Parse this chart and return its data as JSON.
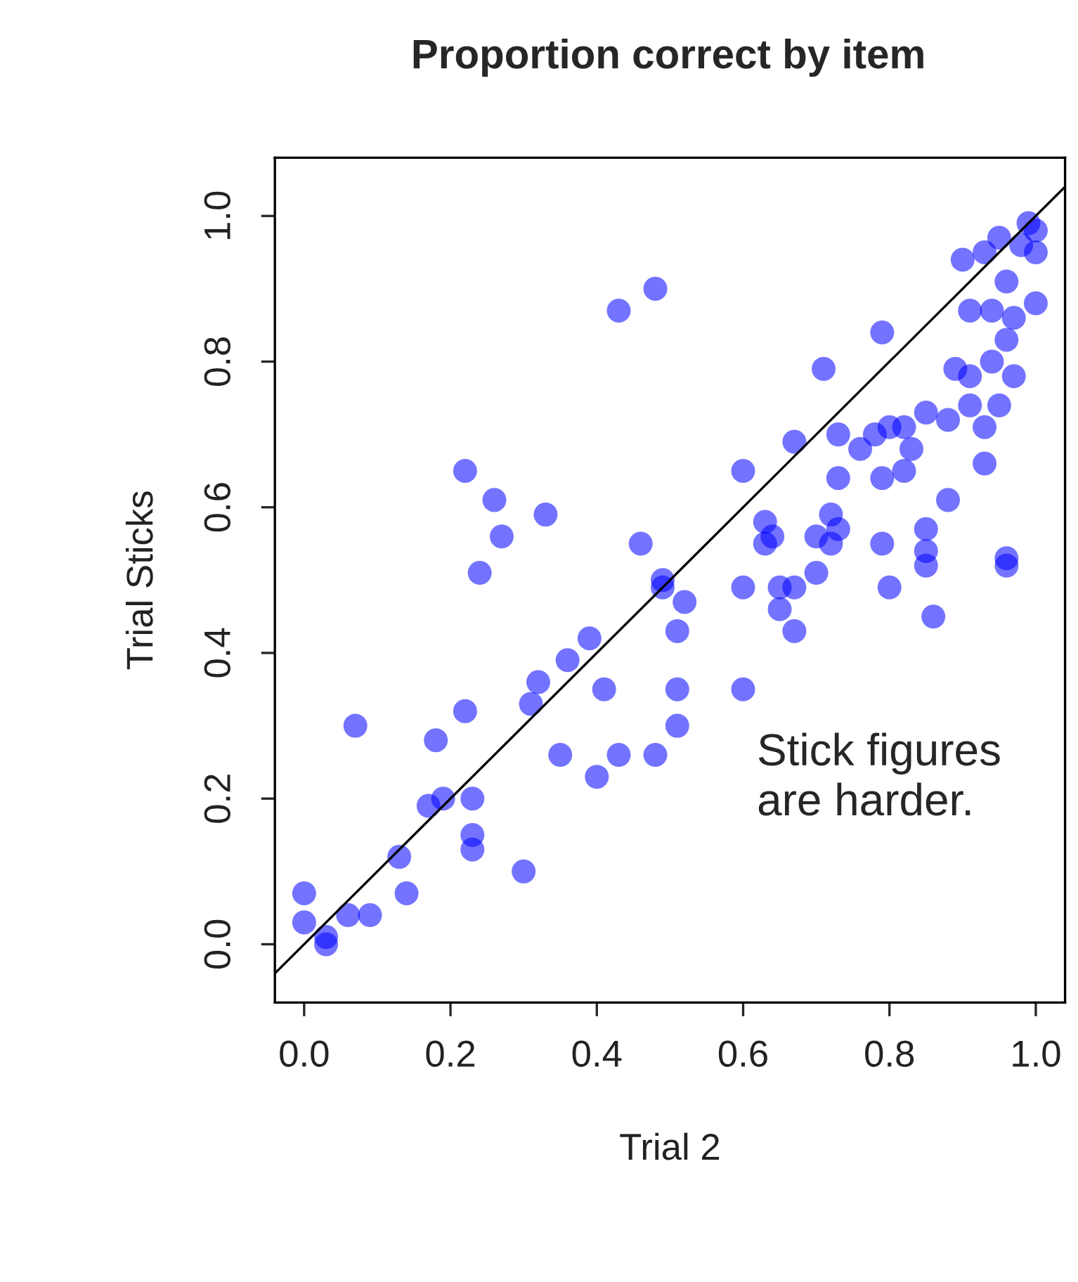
{
  "chart_data": {
    "type": "scatter",
    "title": "Proportion correct by item",
    "xlabel": "Trial 2",
    "ylabel": "Trial Sticks",
    "annotations": [
      "Stick figures\nare harder."
    ],
    "xlim": [
      -0.04,
      1.04
    ],
    "ylim": [
      -0.08,
      1.08
    ],
    "xticks": [
      {
        "value": 0,
        "label": "0.0"
      },
      0.2,
      0.4,
      0.6,
      0.8,
      {
        "value": 1,
        "label": "1.0"
      }
    ],
    "yticks": [
      {
        "value": 0,
        "label": "0.0"
      },
      0.2,
      0.4,
      0.6,
      0.8,
      {
        "value": 1,
        "label": "1.0"
      }
    ],
    "grid": false,
    "marker": "circle",
    "series": [
      {
        "color": "#0000ff",
        "x": [
          0.27,
          0.24,
          0.46,
          0.49,
          0.39,
          0.36,
          0.32,
          0.31,
          0.41,
          0.22,
          0.18,
          0.07,
          0.35,
          0.4,
          0.43,
          0.48,
          0.19,
          0.17,
          0.23,
          0.23,
          0.23,
          0.3,
          0.13,
          0.14,
          0.0,
          0.0,
          0.06,
          0.09,
          0.03,
          0.03,
          0.22,
          0.26,
          0.33,
          0.43,
          0.48,
          0.79,
          0.71,
          0.6,
          0.67,
          0.73,
          0.76,
          0.78,
          0.8,
          0.82,
          0.85,
          0.83,
          0.82,
          0.73,
          0.79,
          0.88,
          0.93,
          0.93,
          0.88,
          0.89,
          0.91,
          0.94,
          0.97,
          0.95,
          0.91,
          0.94,
          0.91,
          0.97,
          1.0,
          0.96,
          0.96,
          0.9,
          0.93,
          0.95,
          0.99,
          1.0,
          1.0,
          0.98,
          0.63,
          0.64,
          0.72,
          0.73,
          0.7,
          0.79,
          0.85,
          0.85,
          0.96,
          0.63,
          0.72,
          0.85,
          0.96,
          0.6,
          0.65,
          0.67,
          0.7,
          0.8,
          0.86,
          0.65,
          0.67,
          0.49,
          0.52,
          0.51,
          0.51,
          0.6,
          0.51
        ],
        "values": [
          0.56,
          0.51,
          0.55,
          0.49,
          0.42,
          0.39,
          0.36,
          0.33,
          0.35,
          0.32,
          0.28,
          0.3,
          0.26,
          0.23,
          0.26,
          0.26,
          0.2,
          0.19,
          0.2,
          0.15,
          0.13,
          0.1,
          0.12,
          0.07,
          0.07,
          0.03,
          0.04,
          0.04,
          0.01,
          0.0,
          0.65,
          0.61,
          0.59,
          0.87,
          0.9,
          0.84,
          0.79,
          0.65,
          0.69,
          0.7,
          0.68,
          0.7,
          0.71,
          0.71,
          0.73,
          0.68,
          0.65,
          0.64,
          0.64,
          0.72,
          0.71,
          0.66,
          0.61,
          0.79,
          0.78,
          0.8,
          0.78,
          0.74,
          0.74,
          0.87,
          0.87,
          0.86,
          0.88,
          0.83,
          0.91,
          0.94,
          0.95,
          0.97,
          0.99,
          0.98,
          0.95,
          0.96,
          0.58,
          0.56,
          0.59,
          0.57,
          0.56,
          0.55,
          0.57,
          0.54,
          0.53,
          0.55,
          0.55,
          0.52,
          0.52,
          0.49,
          0.49,
          0.49,
          0.51,
          0.49,
          0.45,
          0.46,
          0.43,
          0.5,
          0.47,
          0.43,
          0.35,
          0.35,
          0.3
        ]
      },
      {
        "type": "line",
        "color": "#000000",
        "x": [
          -0.04,
          1.04
        ],
        "values": [
          -0.04,
          1.04
        ],
        "marker": "none"
      }
    ]
  }
}
